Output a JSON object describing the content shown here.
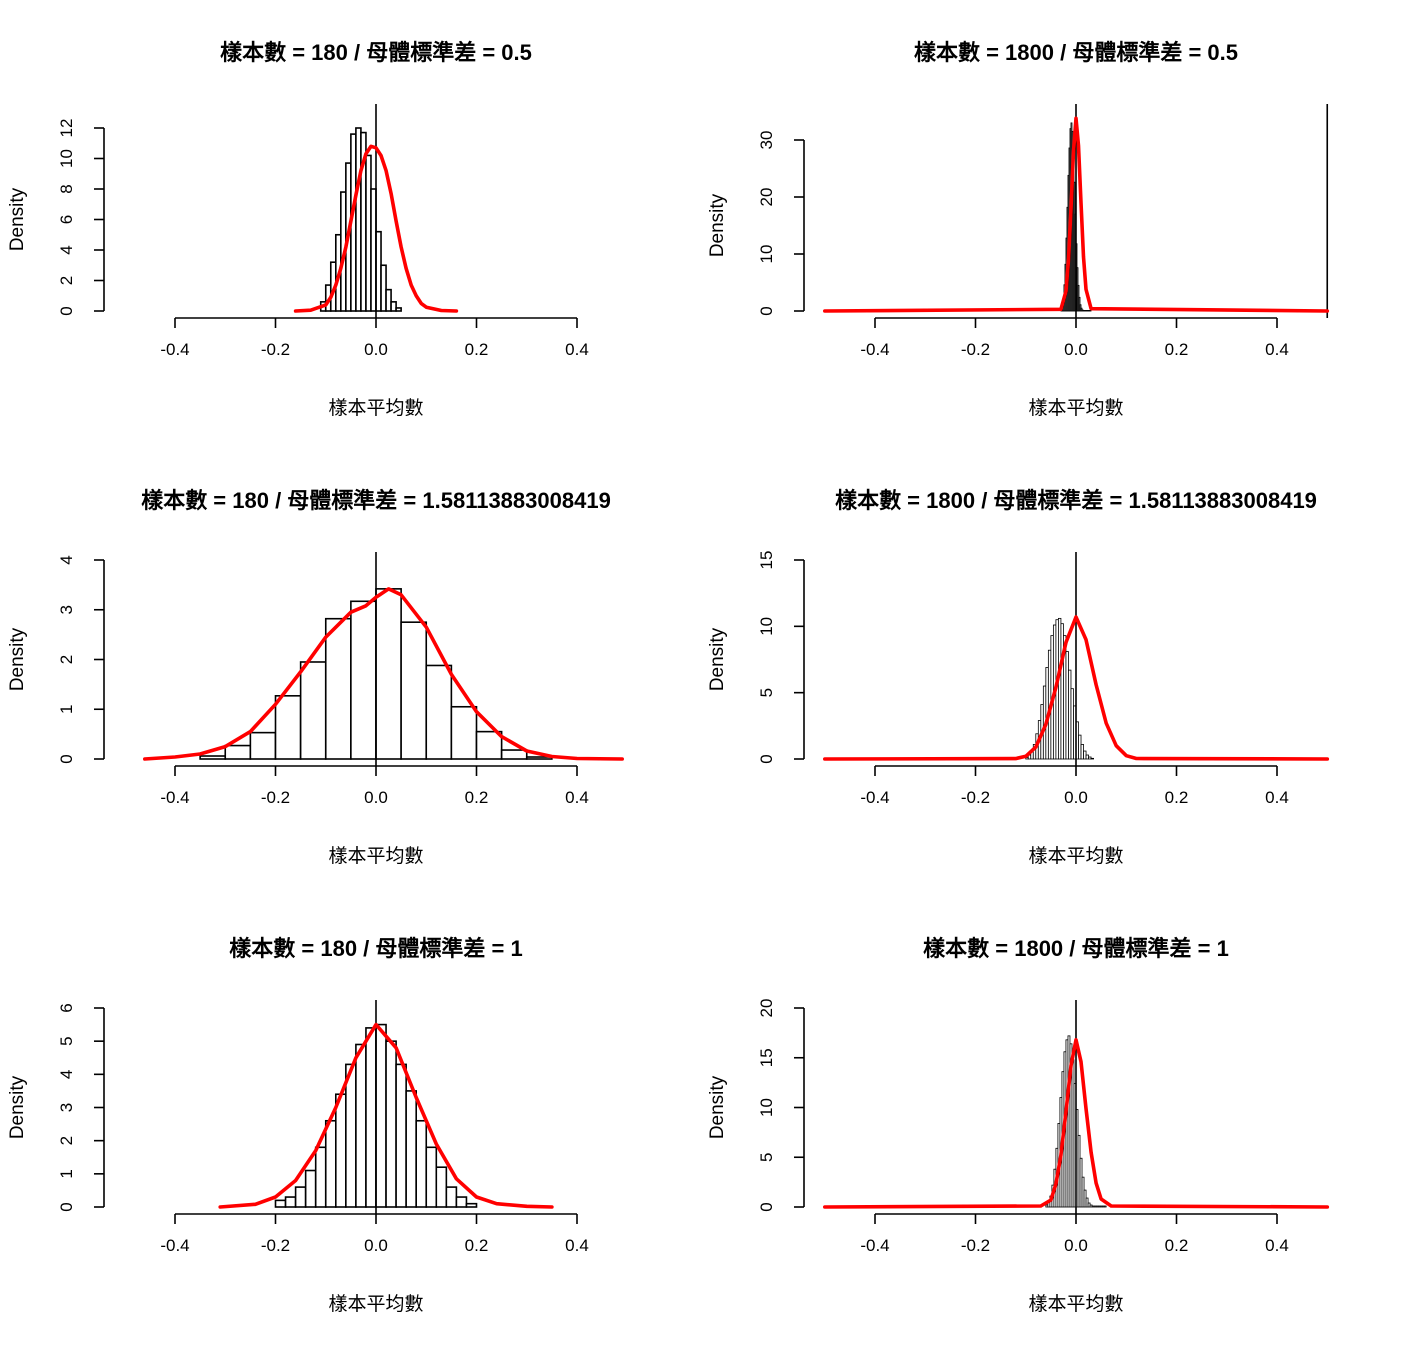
{
  "chart_data": [
    {
      "type": "histogram",
      "title": "樣本數 = 180 / 母體標準差 = 0.5",
      "xlabel": "樣本平均數",
      "ylabel": "Density",
      "x_ticks": [
        "-0.4",
        "-0.2",
        "0.0",
        "0.2",
        "0.4"
      ],
      "y_ticks": [
        "0",
        "2",
        "4",
        "6",
        "8",
        "10",
        "12"
      ],
      "xlim": [
        -0.5,
        0.5
      ],
      "ylim": [
        0,
        12.6
      ],
      "bin_start": -0.11,
      "bin_width": 0.01,
      "bar_values": [
        0.6,
        1.7,
        3.2,
        5.0,
        7.8,
        9.7,
        11.6,
        12.0,
        11.7,
        10.2,
        8.0,
        5.2,
        3.0,
        1.4,
        0.6,
        0.2
      ],
      "density_color": "#ff0000",
      "density": {
        "x": [
          -0.16,
          -0.13,
          -0.1,
          -0.09,
          -0.08,
          -0.07,
          -0.06,
          -0.05,
          -0.04,
          -0.03,
          -0.02,
          -0.01,
          0.0,
          0.01,
          0.02,
          0.03,
          0.04,
          0.05,
          0.06,
          0.07,
          0.08,
          0.09,
          0.1,
          0.13,
          0.16
        ],
        "y": [
          0.0,
          0.05,
          0.4,
          0.9,
          1.7,
          2.8,
          4.2,
          5.9,
          7.6,
          9.2,
          10.3,
          10.8,
          10.7,
          10.2,
          9.2,
          7.7,
          5.9,
          4.2,
          2.8,
          1.7,
          1.0,
          0.5,
          0.25,
          0.03,
          0.0
        ]
      },
      "vertical_lines": [
        0.0
      ]
    },
    {
      "type": "histogram",
      "title": "樣本數 = 1800 / 母體標準差 = 0.5",
      "xlabel": "樣本平均數",
      "ylabel": "Density",
      "x_ticks": [
        "-0.4",
        "-0.2",
        "0.0",
        "0.2",
        "0.4"
      ],
      "y_ticks": [
        "0",
        "10",
        "20",
        "30"
      ],
      "xlim": [
        -0.5,
        0.5
      ],
      "ylim": [
        0,
        35
      ],
      "bin_start": -0.03,
      "bin_width": 0.002,
      "bar_values": [
        0.3,
        0.9,
        2.3,
        4.6,
        8.2,
        12.8,
        18.2,
        23.8,
        28.6,
        32.0,
        33.0,
        31.5,
        27.8,
        22.6,
        17.0,
        11.8,
        7.6,
        4.5,
        2.4,
        1.1,
        0.5,
        0.2,
        0.1,
        0.1,
        0.1,
        0.1,
        0.1,
        0.1,
        0.1,
        0.1
      ],
      "density_color": "#ff0000",
      "density": {
        "x": [
          -0.5,
          -0.03,
          -0.02,
          -0.015,
          -0.01,
          -0.005,
          0.0,
          0.005,
          0.01,
          0.015,
          0.02,
          0.03,
          0.5
        ],
        "y": [
          0.0,
          0.3,
          3.5,
          9.0,
          18.0,
          28.0,
          33.8,
          29.0,
          19.0,
          9.5,
          3.8,
          0.4,
          0.0
        ]
      },
      "vertical_lines": [
        0.0,
        0.5
      ]
    },
    {
      "type": "histogram",
      "title": "樣本數 = 180 / 母體標準差 = 1.58113883008419",
      "xlabel": "樣本平均數",
      "ylabel": "Density",
      "x_ticks": [
        "-0.4",
        "-0.2",
        "0.0",
        "0.2",
        "0.4"
      ],
      "y_ticks": [
        "0",
        "1",
        "2",
        "3",
        "4"
      ],
      "xlim": [
        -0.5,
        0.5
      ],
      "ylim": [
        0,
        4
      ],
      "bin_start": -0.35,
      "bin_width": 0.05,
      "bar_values": [
        0.06,
        0.27,
        0.53,
        1.27,
        1.95,
        2.82,
        3.17,
        3.42,
        2.75,
        1.88,
        1.05,
        0.55,
        0.18,
        0.04
      ],
      "density_color": "#ff0000",
      "density": {
        "x": [
          -0.46,
          -0.4,
          -0.35,
          -0.3,
          -0.25,
          -0.2,
          -0.15,
          -0.1,
          -0.05,
          -0.02,
          0.0,
          0.025,
          0.05,
          0.1,
          0.15,
          0.2,
          0.25,
          0.3,
          0.35,
          0.4,
          0.49
        ],
        "y": [
          0.0,
          0.04,
          0.1,
          0.25,
          0.55,
          1.1,
          1.75,
          2.45,
          2.95,
          3.08,
          3.25,
          3.42,
          3.3,
          2.65,
          1.7,
          0.95,
          0.45,
          0.16,
          0.05,
          0.01,
          0.0
        ]
      },
      "vertical_lines": [
        0.0
      ]
    },
    {
      "type": "histogram",
      "title": "樣本數 = 1800 / 母體標準差 = 1.58113883008419",
      "xlabel": "樣本平均數",
      "ylabel": "Density",
      "x_ticks": [
        "-0.4",
        "-0.2",
        "0.0",
        "0.2",
        "0.4"
      ],
      "y_ticks": [
        "0",
        "5",
        "10",
        "15"
      ],
      "xlim": [
        -0.5,
        0.5
      ],
      "ylim": [
        0,
        15
      ],
      "bin_start": -0.1,
      "bin_width": 0.005,
      "bar_values": [
        0.1,
        0.3,
        0.6,
        1.1,
        1.9,
        2.9,
        4.1,
        5.5,
        6.9,
        8.2,
        9.3,
        10.1,
        10.5,
        10.6,
        10.2,
        9.3,
        8.1,
        6.7,
        5.3,
        4.0,
        2.8,
        1.8,
        1.1,
        0.6,
        0.3,
        0.15,
        0.05
      ],
      "density_color": "#ff0000",
      "density": {
        "x": [
          -0.5,
          -0.12,
          -0.1,
          -0.08,
          -0.06,
          -0.04,
          -0.02,
          0.0,
          0.02,
          0.04,
          0.06,
          0.08,
          0.1,
          0.12,
          0.5
        ],
        "y": [
          0.0,
          0.03,
          0.2,
          0.9,
          2.6,
          5.4,
          8.8,
          10.7,
          9.0,
          5.6,
          2.7,
          1.0,
          0.25,
          0.04,
          0.0
        ]
      },
      "vertical_lines": [
        0.0
      ]
    },
    {
      "type": "histogram",
      "title": "樣本數 = 180 / 母體標準差 = 1",
      "xlabel": "樣本平均數",
      "ylabel": "Density",
      "x_ticks": [
        "-0.4",
        "-0.2",
        "0.0",
        "0.2",
        "0.4"
      ],
      "y_ticks": [
        "0",
        "1",
        "2",
        "3",
        "4",
        "5",
        "6"
      ],
      "xlim": [
        -0.5,
        0.5
      ],
      "ylim": [
        0,
        6
      ],
      "bin_start": -0.2,
      "bin_width": 0.02,
      "bar_values": [
        0.2,
        0.3,
        0.6,
        1.1,
        1.8,
        2.6,
        3.4,
        4.3,
        4.9,
        5.4,
        5.5,
        5.0,
        4.3,
        3.5,
        2.6,
        1.8,
        1.2,
        0.6,
        0.3,
        0.1
      ],
      "density_color": "#ff0000",
      "density": {
        "x": [
          -0.31,
          -0.24,
          -0.2,
          -0.16,
          -0.12,
          -0.08,
          -0.04,
          0.0,
          0.04,
          0.08,
          0.12,
          0.16,
          0.2,
          0.24,
          0.3,
          0.35
        ],
        "y": [
          0.0,
          0.08,
          0.3,
          0.8,
          1.7,
          3.0,
          4.5,
          5.5,
          4.8,
          3.3,
          1.9,
          0.85,
          0.3,
          0.1,
          0.02,
          0.0
        ]
      },
      "vertical_lines": [
        0.0
      ]
    },
    {
      "type": "histogram",
      "title": "樣本數 = 1800 / 母體標準差 = 1",
      "xlabel": "樣本平均數",
      "ylabel": "Density",
      "x_ticks": [
        "-0.4",
        "-0.2",
        "0.0",
        "0.2",
        "0.4"
      ],
      "y_ticks": [
        "0",
        "5",
        "10",
        "15",
        "20"
      ],
      "xlim": [
        -0.5,
        0.5
      ],
      "ylim": [
        0,
        20
      ],
      "bin_start": -0.06,
      "bin_width": 0.004,
      "bar_values": [
        0.2,
        0.5,
        1.1,
        2.2,
        3.8,
        5.9,
        8.4,
        11.0,
        13.6,
        15.6,
        16.8,
        17.2,
        16.4,
        14.8,
        12.4,
        9.8,
        7.2,
        4.9,
        3.0,
        1.7,
        0.9,
        0.4,
        0.2,
        0.1,
        0.1,
        0.1,
        0.1,
        0.1,
        0.1,
        0.1
      ],
      "density_color": "#ff0000",
      "density": {
        "x": [
          -0.5,
          -0.07,
          -0.05,
          -0.04,
          -0.03,
          -0.02,
          -0.01,
          0.0,
          0.01,
          0.02,
          0.03,
          0.04,
          0.05,
          0.07,
          0.5
        ],
        "y": [
          0.0,
          0.1,
          0.7,
          2.3,
          5.2,
          9.6,
          14.2,
          16.8,
          14.6,
          9.9,
          5.5,
          2.4,
          0.8,
          0.1,
          0.0
        ]
      },
      "vertical_lines": [
        0.0
      ]
    }
  ]
}
